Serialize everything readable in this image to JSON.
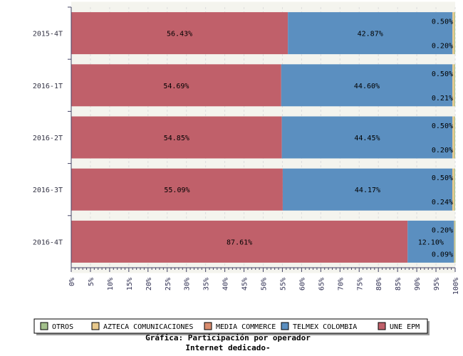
{
  "chart_data": {
    "type": "bar",
    "orientation": "horizontal",
    "stacked": "percent",
    "title": "Gráfica: Participación por operador",
    "subtitle": "Internet dedicado-",
    "categories": [
      "2015-4T",
      "2016-1T",
      "2016-2T",
      "2016-3T",
      "2016-4T"
    ],
    "series": [
      {
        "name": "UNE EPM",
        "color": "#c0606a",
        "values": [
          56.43,
          54.69,
          54.85,
          55.09,
          87.61
        ],
        "labels": [
          "56.43%",
          "54.69%",
          "54.85%",
          "55.09%",
          "87.61%"
        ]
      },
      {
        "name": "TELMEX COLOMBIA",
        "color": "#5b8fc0",
        "values": [
          42.87,
          44.6,
          44.45,
          44.17,
          12.1
        ],
        "labels": [
          "42.87%",
          "44.60%",
          "44.45%",
          "44.17%",
          "12.10%"
        ]
      },
      {
        "name": "MEDIA COMMERCE",
        "color": "#d98c6e",
        "values": [
          0,
          0,
          0,
          0,
          0
        ],
        "labels": [
          "",
          "",
          "",
          "",
          ""
        ]
      },
      {
        "name": "AZTECA COMUNICACIONES",
        "color": "#e8c98c",
        "values": [
          0.5,
          0.5,
          0.5,
          0.5,
          0.2
        ],
        "labels": [
          "0.50%",
          "0.50%",
          "0.50%",
          "0.50%",
          "0.20%"
        ]
      },
      {
        "name": "OTROS",
        "color": "#a3c08c",
        "values": [
          0.2,
          0.21,
          0.2,
          0.24,
          0.09
        ],
        "labels": [
          "0.20%",
          "0.21%",
          "0.20%",
          "0.24%",
          "0.09%"
        ]
      }
    ],
    "legend_order": [
      "OTROS",
      "AZTECA COMUNICACIONES",
      "MEDIA COMMERCE",
      "TELMEX COLOMBIA",
      "UNE EPM"
    ],
    "xlim": [
      0,
      100
    ],
    "xticks": [
      "0%",
      "5%",
      "10%",
      "15%",
      "20%",
      "25%",
      "30%",
      "35%",
      "40%",
      "45%",
      "50%",
      "55%",
      "60%",
      "65%",
      "70%",
      "75%",
      "80%",
      "85%",
      "90%",
      "95%",
      "100%"
    ],
    "legend_placement": "bottom",
    "grid": true
  }
}
